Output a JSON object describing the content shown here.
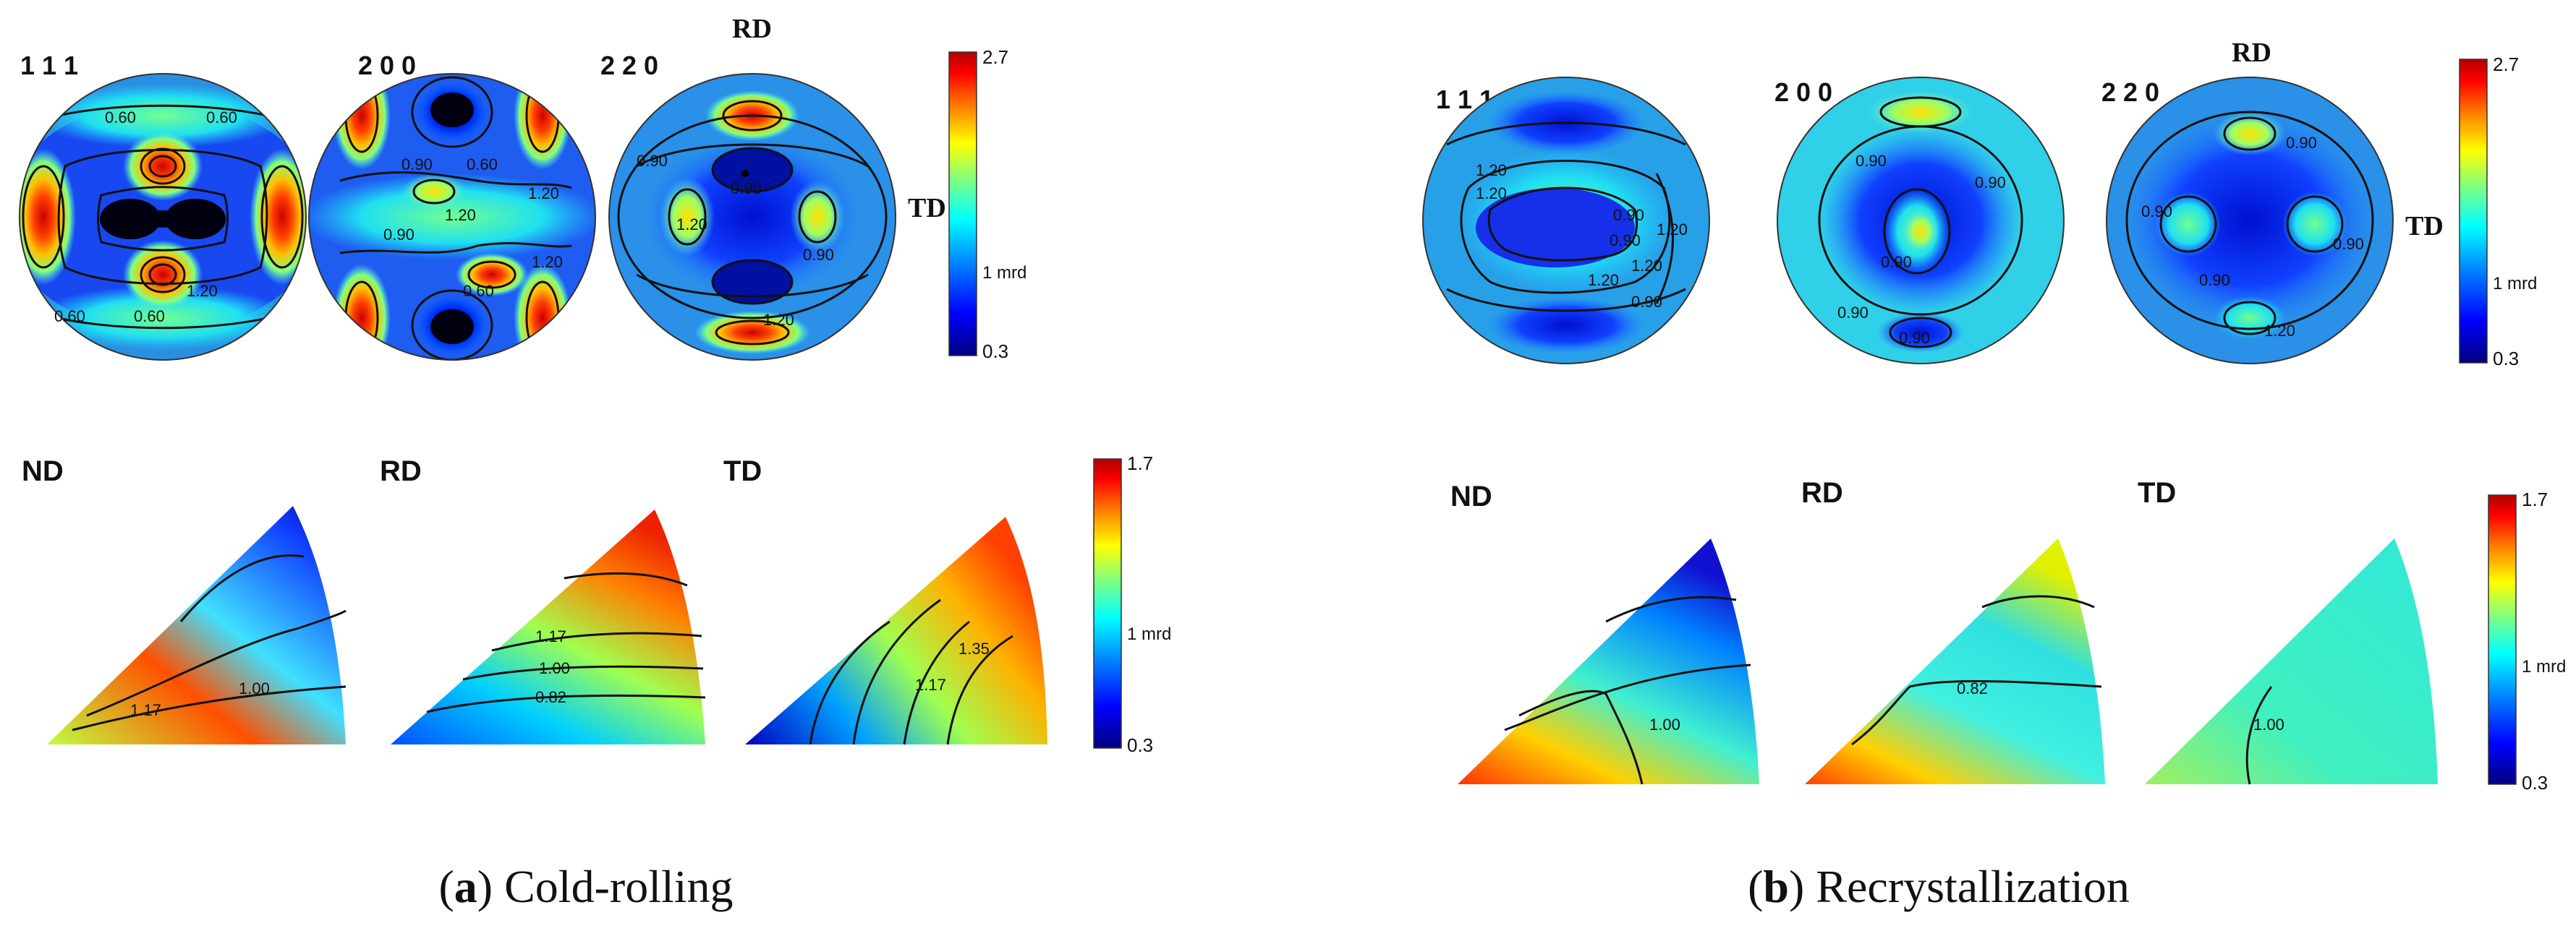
{
  "panels": [
    {
      "id": "a",
      "caption_letter": "a",
      "caption_text": "Cold-rolling",
      "pole_figures": [
        {
          "label": "1 1 1",
          "contours": [
            "0.60",
            "0.60",
            "1.20",
            "0.60",
            "0.60"
          ]
        },
        {
          "label": "2 0 0",
          "contours": [
            "0.90",
            "0.60",
            "1.20",
            "0.90",
            "1.20",
            "1.20",
            "0.60"
          ]
        },
        {
          "label": "2 2 0",
          "contours": [
            "0.90",
            "0.90",
            "1.20",
            "0.90",
            "1.20"
          ]
        }
      ],
      "pole_axis_top": "RD",
      "pole_axis_right": "TD",
      "pole_colorbar": {
        "max": "2.7",
        "mid": "1 mrd",
        "min": "0.3"
      },
      "ipf": [
        {
          "label": "ND",
          "contours": [
            "1.17",
            "1.00"
          ]
        },
        {
          "label": "RD",
          "contours": [
            "1.17",
            "1.00",
            "0.82"
          ]
        },
        {
          "label": "TD",
          "contours": [
            "1.35",
            "1.17"
          ]
        }
      ],
      "ipf_colorbar": {
        "max": "1.7",
        "mid": "1 mrd",
        "min": "0.3"
      }
    },
    {
      "id": "b",
      "caption_letter": "b",
      "caption_text": "Recrystallization",
      "pole_figures": [
        {
          "label": "1 1 1",
          "contours": [
            "1.20",
            "1.20",
            "1.20",
            "0.90",
            "0.90",
            "1.20",
            "1.20",
            "0.90"
          ]
        },
        {
          "label": "2 0 0",
          "contours": [
            "0.90",
            "0.90",
            "0.90",
            "0.90",
            "0.90"
          ]
        },
        {
          "label": "2 2 0",
          "contours": [
            "0.90",
            "0.90",
            "0.90",
            "0.90",
            "1.20"
          ]
        }
      ],
      "pole_axis_top": "RD",
      "pole_axis_right": "TD",
      "pole_colorbar": {
        "max": "2.7",
        "mid": "1 mrd",
        "min": "0.3"
      },
      "ipf": [
        {
          "label": "ND",
          "contours": [
            "1.00"
          ]
        },
        {
          "label": "RD",
          "contours": [
            "0.82"
          ]
        },
        {
          "label": "TD",
          "contours": [
            "1.00"
          ]
        }
      ],
      "ipf_colorbar": {
        "max": "1.7",
        "mid": "1 mrd",
        "min": "0.3"
      }
    }
  ],
  "colors": {
    "jet": [
      "#00007f",
      "#0000ff",
      "#0080ff",
      "#00ffff",
      "#80ff80",
      "#ffff00",
      "#ff8000",
      "#ff0000",
      "#7f0000"
    ],
    "background_pole": "#2a8fe0",
    "contour": "#111111"
  }
}
